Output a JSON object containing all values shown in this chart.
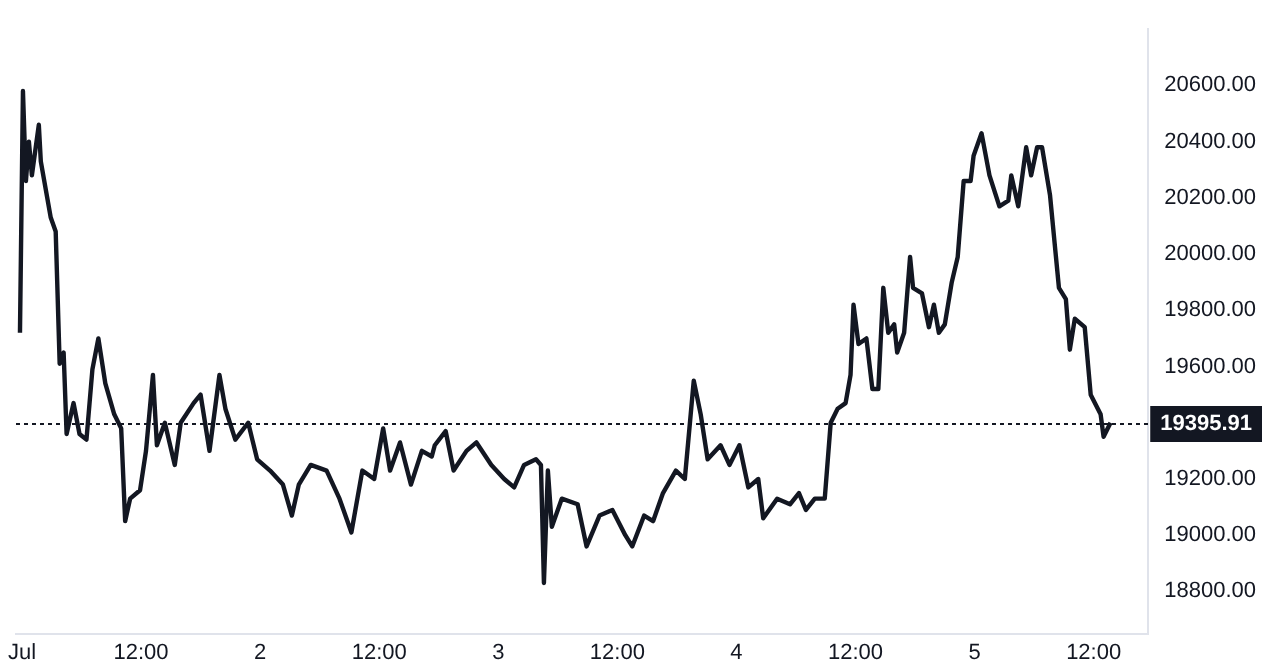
{
  "chart_data": {
    "type": "line",
    "x": [
      "--06-30T23:48",
      "--07-01T00:06",
      "--07-01T00:24",
      "--07-01T00:42",
      "--07-01T01:00",
      "--07-01T01:42",
      "--07-01T01:54",
      "--07-01T02:54",
      "--07-01T03:24",
      "--07-01T03:48",
      "--07-01T04:12",
      "--07-01T04:30",
      "--07-01T05:12",
      "--07-01T05:48",
      "--07-01T06:30",
      "--07-01T07:06",
      "--07-01T07:42",
      "--07-01T08:24",
      "--07-01T09:18",
      "--07-01T10:00",
      "--07-01T10:24",
      "--07-01T10:54",
      "--07-01T11:54",
      "--07-01T12:30",
      "--07-01T13:12",
      "--07-01T13:36",
      "--07-01T14:24",
      "--07-01T15:24",
      "--07-01T16:00",
      "--07-01T17:18",
      "--07-01T18:00",
      "--07-01T18:54",
      "--07-01T19:54",
      "--07-01T20:30",
      "--07-01T21:30",
      "--07-01T22:48",
      "--07-01T23:42",
      "--07-02T01:00",
      "--07-02T02:18",
      "--07-02T03:12",
      "--07-02T03:54",
      "--07-02T05:06",
      "--07-02T06:42",
      "--07-02T08:00",
      "--07-02T09:12",
      "--07-02T10:18",
      "--07-02T11:30",
      "--07-02T12:24",
      "--07-02T13:06",
      "--07-02T14:06",
      "--07-02T15:12",
      "--07-02T16:18",
      "--07-02T17:18",
      "--07-02T17:36",
      "--07-02T18:42",
      "--07-02T19:30",
      "--07-02T20:48",
      "--07-02T21:48",
      "--07-02T23:18",
      "--07-03T00:36",
      "--07-03T01:36",
      "--07-03T02:36",
      "--07-03T03:48",
      "--07-03T04:18",
      "--07-03T04:36",
      "--07-03T05:00",
      "--07-03T05:24",
      "--07-03T06:24",
      "--07-03T08:00",
      "--07-03T08:54",
      "--07-03T10:12",
      "--07-03T11:30",
      "--07-03T12:48",
      "--07-03T13:30",
      "--07-03T14:42",
      "--07-03T15:36",
      "--07-03T16:36",
      "--07-03T17:54",
      "--07-03T18:48",
      "--07-03T19:42",
      "--07-03T20:24",
      "--07-03T21:06",
      "--07-03T22:24",
      "--07-03T23:18",
      "--07-04T00:18",
      "--07-04T01:12",
      "--07-04T02:12",
      "--07-04T02:42",
      "--07-04T04:06",
      "--07-04T05:24",
      "--07-04T06:18",
      "--07-04T07:00",
      "--07-04T07:54",
      "--07-04T08:54",
      "--07-04T09:30",
      "--07-04T10:12",
      "--07-04T11:00",
      "--07-04T11:30",
      "--07-04T11:48",
      "--07-04T12:18",
      "--07-04T13:06",
      "--07-04T13:42",
      "--07-04T14:18",
      "--07-04T14:48",
      "--07-04T15:18",
      "--07-04T15:54",
      "--07-04T16:12",
      "--07-04T16:54",
      "--07-04T17:30",
      "--07-04T17:48",
      "--07-04T18:42",
      "--07-04T19:24",
      "--07-04T19:54",
      "--07-04T20:24",
      "--07-04T21:00",
      "--07-04T21:42",
      "--07-04T22:18",
      "--07-04T22:54",
      "--07-04T23:36",
      "--07-04T23:54",
      "--07-05T00:42",
      "--07-05T01:30",
      "--07-05T02:30",
      "--07-05T03:24",
      "--07-05T03:42",
      "--07-05T04:24",
      "--07-05T05:12",
      "--07-05T05:42",
      "--07-05T06:18",
      "--07-05T06:48",
      "--07-05T07:36",
      "--07-05T08:30",
      "--07-05T09:12",
      "--07-05T09:36",
      "--07-05T10:06",
      "--07-05T11:06",
      "--07-05T11:42",
      "--07-05T12:42",
      "--07-05T13:00",
      "--07-05T13:42"
    ],
    "series": [
      {
        "color": "#131722",
        "values": [
          19720,
          20580,
          20260,
          20400,
          20280,
          20460,
          20330,
          20130,
          20080,
          19610,
          19650,
          19360,
          19470,
          19360,
          19340,
          19590,
          19700,
          19540,
          19430,
          19380,
          19050,
          19130,
          19160,
          19300,
          19570,
          19320,
          19400,
          19250,
          19400,
          19470,
          19500,
          19300,
          19570,
          19450,
          19340,
          19400,
          19270,
          19230,
          19180,
          19070,
          19180,
          19250,
          19230,
          19130,
          19010,
          19230,
          19200,
          19380,
          19230,
          19330,
          19180,
          19300,
          19280,
          19320,
          19370,
          19230,
          19300,
          19330,
          19250,
          19200,
          19170,
          19250,
          19270,
          19250,
          18830,
          19230,
          19030,
          19130,
          19110,
          18960,
          19070,
          19090,
          19000,
          18960,
          19070,
          19050,
          19150,
          19230,
          19200,
          19550,
          19430,
          19270,
          19320,
          19250,
          19320,
          19170,
          19200,
          19060,
          19130,
          19110,
          19150,
          19090,
          19130,
          19130,
          19400,
          19450,
          19470,
          19570,
          19820,
          19680,
          19700,
          19520,
          19520,
          19880,
          19720,
          19750,
          19650,
          19720,
          19990,
          19880,
          19860,
          19740,
          19820,
          19720,
          19750,
          19900,
          19990,
          20260,
          20260,
          20350,
          20430,
          20280,
          20170,
          20190,
          20280,
          20170,
          20380,
          20280,
          20380,
          20380,
          20210,
          19880,
          19840,
          19660,
          19770,
          19740,
          19500,
          19430,
          19350,
          19400
        ]
      }
    ],
    "xlim": [
      "--06-30T23:24",
      "--07-05T17:30"
    ],
    "xticks": [
      {
        "value": "--07-01",
        "label": "Jul"
      },
      {
        "value": "--07-01T12:00",
        "label": "12:00"
      },
      {
        "value": "--07-02",
        "label": "2"
      },
      {
        "value": "--07-02T12:00",
        "label": "12:00"
      },
      {
        "value": "--07-03",
        "label": "3"
      },
      {
        "value": "--07-03T12:00",
        "label": "12:00"
      },
      {
        "value": "--07-04",
        "label": "4"
      },
      {
        "value": "--07-04T12:00",
        "label": "12:00"
      },
      {
        "value": "--07-05",
        "label": "5"
      },
      {
        "value": "--07-05T12:00",
        "label": "12:00"
      }
    ],
    "ylim": [
      18650,
      20800
    ],
    "yticks": [
      {
        "value": 18800,
        "label": "18800.00"
      },
      {
        "value": 19000,
        "label": "19000.00"
      },
      {
        "value": 19200,
        "label": "19200.00"
      },
      {
        "value": 19600,
        "label": "19600.00"
      },
      {
        "value": 19800,
        "label": "19800.00"
      },
      {
        "value": 20000,
        "label": "20000.00"
      },
      {
        "value": 20200,
        "label": "20200.00"
      },
      {
        "value": 20400,
        "label": "20400.00"
      },
      {
        "value": 20600,
        "label": "20600.00"
      }
    ],
    "ref_lines": [
      {
        "axis": "y",
        "value": 19395.91,
        "label": "19395.91",
        "color": "#131722",
        "line_style": "dotted"
      }
    ],
    "grid": false,
    "legend": false,
    "marker": "none",
    "line_style": "solid"
  }
}
